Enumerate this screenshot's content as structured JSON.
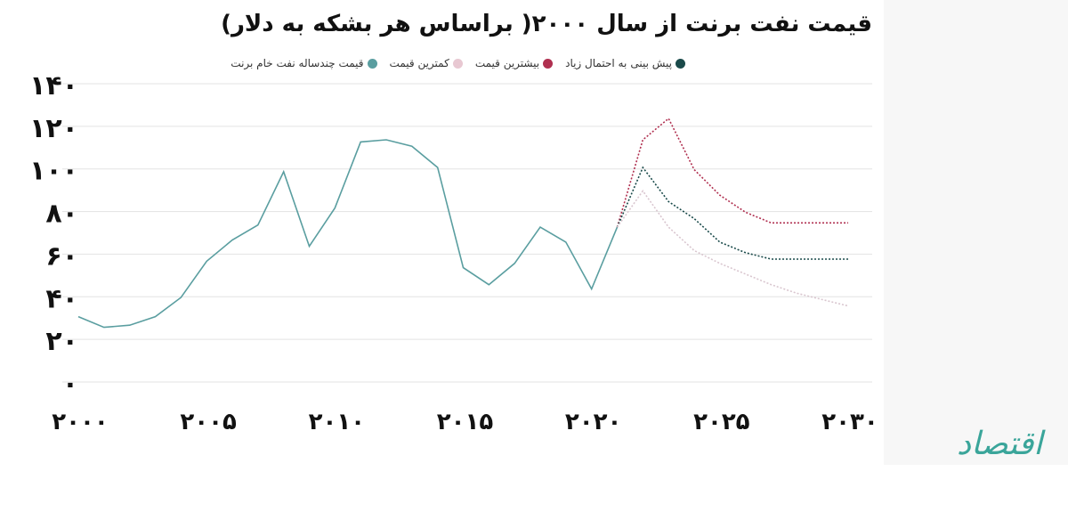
{
  "chart_data": {
    "type": "line",
    "title": "قیمت نفت برنت از سال ۲۰۰۰( براساس هر بشکه به دلار)",
    "xlabel": "",
    "ylabel": "",
    "xlim": [
      2000,
      2030
    ],
    "ylim": [
      0,
      140
    ],
    "y_ticks": [
      0,
      20,
      40,
      60,
      80,
      100,
      120,
      140
    ],
    "y_tick_labels": [
      "۰",
      "۲۰",
      "۴۰",
      "۶۰",
      "۸۰",
      "۱۰۰",
      "۱۲۰",
      "۱۴۰"
    ],
    "x_ticks": [
      2000,
      2005,
      2010,
      2015,
      2020,
      2025,
      2030
    ],
    "x_tick_labels": [
      "۲۰۰۰",
      "۲۰۰۵",
      "۲۰۱۰",
      "۲۰۱۵",
      "۲۰۲۰",
      "۲۰۲۵",
      "۲۰۳۰"
    ],
    "grid": true,
    "legend_position": "top",
    "series": [
      {
        "name": "قیمت چندساله نفت خام برنت",
        "color": "#5a9ea0",
        "style": "solid",
        "x": [
          2000,
          2001,
          2002,
          2003,
          2004,
          2005,
          2006,
          2007,
          2008,
          2009,
          2010,
          2011,
          2012,
          2013,
          2014,
          2015,
          2016,
          2017,
          2018,
          2019,
          2020,
          2021
        ],
        "y": [
          29,
          24,
          25,
          29,
          38,
          55,
          65,
          72,
          97,
          62,
          80,
          111,
          112,
          109,
          99,
          52,
          44,
          54,
          71,
          64,
          42,
          71
        ]
      },
      {
        "name": "بیشترین قیمت",
        "color": "#b03050",
        "style": "dotted",
        "x": [
          2021,
          2022,
          2023,
          2024,
          2025,
          2026,
          2027,
          2028,
          2029,
          2030
        ],
        "y": [
          71,
          112,
          122,
          98,
          86,
          78,
          73,
          73,
          73,
          73
        ]
      },
      {
        "name": "به احتمال زیاد",
        "color": "#1a4a4a",
        "style": "dotted",
        "x": [
          2021,
          2022,
          2023,
          2024,
          2025,
          2026,
          2027,
          2028,
          2029,
          2030
        ],
        "y": [
          71,
          99,
          83,
          75,
          64,
          59,
          56,
          56,
          56,
          56
        ]
      },
      {
        "name": "کمترین قیمت",
        "color": "#d9c6cf",
        "style": "dotted",
        "x": [
          2021,
          2022,
          2023,
          2024,
          2025,
          2026,
          2027,
          2028,
          2029,
          2030
        ],
        "y": [
          71,
          88,
          71,
          60,
          54,
          49,
          44,
          40,
          37,
          34
        ]
      }
    ],
    "legend_extra": "پیش بینی"
  },
  "logo": {
    "text": "اقتصاد"
  },
  "colors": {
    "grid": "#e3e3e3",
    "axis_text": "#111111"
  }
}
